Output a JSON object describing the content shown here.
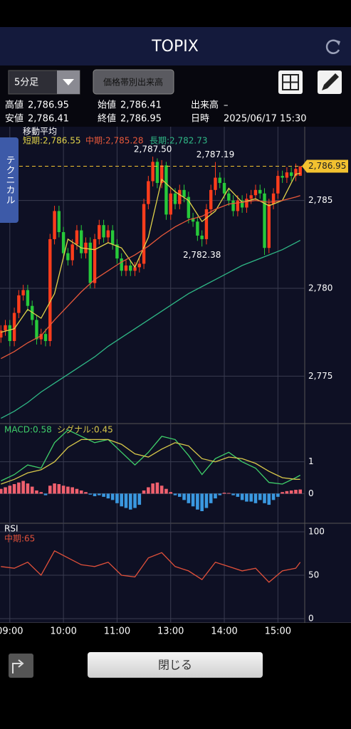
{
  "header": {
    "title": "TOPIX"
  },
  "toolbar": {
    "interval": "5分足",
    "volume_button": "価格帯別出来高"
  },
  "info": [
    [
      {
        "label": "高値",
        "value": "2,786.95"
      },
      {
        "label": "始値",
        "value": "2,786.41"
      },
      {
        "label": "出来高",
        "value": "–"
      }
    ],
    [
      {
        "label": "安値",
        "value": "2,786.41"
      },
      {
        "label": "終値",
        "value": "2,786.95"
      },
      {
        "label": "日時",
        "value": "2025/06/17 15:30"
      }
    ]
  ],
  "side_tab": "テクニカル",
  "footer": {
    "close_button": "閉じる"
  },
  "chart_data": [
    {
      "type": "candlestick",
      "title": "移動平均",
      "xlim": [
        -0.2,
        68
      ],
      "xticks": [
        {
          "value": 2,
          "label": "09:00"
        },
        {
          "value": 14,
          "label": "10:00"
        },
        {
          "value": 26,
          "label": "11:00"
        },
        {
          "value": 38,
          "label": "13:00"
        },
        {
          "value": 50,
          "label": "14:00"
        },
        {
          "value": 62,
          "label": "15:00"
        }
      ],
      "ylim": [
        2772.3,
        2789.2
      ],
      "yticks": [
        {
          "value": 2785,
          "label": "2,785"
        },
        {
          "value": 2780,
          "label": "2,780"
        },
        {
          "value": 2775,
          "label": "2,775"
        }
      ],
      "grid": true,
      "up_color": "#ff3d1c",
      "down_color": "#27c93a",
      "open": [
        2777.2,
        2777.6,
        2777.9,
        2777.0,
        2778.6,
        2779.6,
        2779.9,
        2779.0,
        2778.2,
        2777.1,
        2777.4,
        2777.0,
        2782.8,
        2784.4,
        2783.2,
        2782.0,
        2781.6,
        2782.5,
        2783.3,
        2782.0,
        2782.6,
        2780.3,
        2782.8,
        2783.6,
        2782.9,
        2783.3,
        2782.5,
        2781.7,
        2781.0,
        2781.3,
        2781.0,
        2781.2,
        2781.4,
        2784.8,
        2786.1,
        2787.2,
        2786.0,
        2787.0,
        2784.2,
        2785.4,
        2784.8,
        2785.6,
        2785.2,
        2784.0,
        2783.8,
        2783.0,
        2782.8,
        2784.5,
        2785.6,
        2786.3,
        2786.0,
        2785.4,
        2785.0,
        2784.4,
        2785.0,
        2784.6,
        2785.1,
        2785.3,
        2785.6,
        2785.4,
        2782.3,
        2784.8,
        2785.4,
        2786.4,
        2786.3,
        2786.6,
        2786.4,
        2786.41
      ],
      "high": [
        2777.9,
        2778.2,
        2778.2,
        2778.9,
        2779.9,
        2780.2,
        2780.2,
        2779.3,
        2778.5,
        2777.7,
        2777.7,
        2783.1,
        2784.7,
        2784.7,
        2783.5,
        2782.3,
        2782.8,
        2783.6,
        2783.6,
        2782.9,
        2782.9,
        2783.1,
        2783.9,
        2783.9,
        2783.6,
        2783.6,
        2782.8,
        2782.0,
        2781.6,
        2781.6,
        2781.5,
        2781.7,
        2785.1,
        2786.4,
        2787.5,
        2787.4,
        2787.3,
        2787.2,
        2785.7,
        2785.7,
        2785.9,
        2785.9,
        2785.5,
        2784.3,
        2784.1,
        2783.3,
        2784.8,
        2785.9,
        2787.19,
        2786.6,
        2786.3,
        2785.7,
        2785.3,
        2785.3,
        2785.3,
        2785.4,
        2785.6,
        2785.9,
        2785.9,
        2785.7,
        2785.1,
        2785.7,
        2786.7,
        2786.7,
        2786.9,
        2786.9,
        2787.1,
        2786.95
      ],
      "low": [
        2776.9,
        2777.3,
        2776.7,
        2776.7,
        2778.3,
        2779.3,
        2778.7,
        2777.9,
        2776.8,
        2776.8,
        2776.7,
        2776.7,
        2782.5,
        2782.9,
        2781.7,
        2781.3,
        2781.3,
        2782.2,
        2781.7,
        2781.7,
        2780.0,
        2780.0,
        2782.5,
        2782.6,
        2782.6,
        2782.2,
        2781.4,
        2780.7,
        2780.7,
        2780.7,
        2780.7,
        2780.9,
        2781.1,
        2784.5,
        2785.8,
        2785.7,
        2785.7,
        2783.9,
        2783.9,
        2784.5,
        2784.5,
        2784.9,
        2783.7,
        2783.5,
        2782.7,
        2782.38,
        2782.5,
        2784.2,
        2785.3,
        2785.7,
        2785.1,
        2784.7,
        2784.1,
        2784.1,
        2784.3,
        2784.3,
        2784.8,
        2785.0,
        2785.1,
        2781.9,
        2782.0,
        2784.5,
        2785.1,
        2786.0,
        2786.0,
        2786.1,
        2786.1,
        2786.41
      ],
      "close": [
        2777.6,
        2777.9,
        2777.0,
        2778.6,
        2779.6,
        2779.9,
        2779.0,
        2778.2,
        2777.1,
        2777.4,
        2777.0,
        2782.8,
        2784.4,
        2783.2,
        2782.0,
        2781.6,
        2782.5,
        2783.3,
        2782.0,
        2782.6,
        2780.3,
        2782.8,
        2783.6,
        2782.9,
        2783.3,
        2782.5,
        2781.7,
        2781.0,
        2781.3,
        2781.0,
        2781.2,
        2781.4,
        2784.8,
        2786.1,
        2787.2,
        2786.0,
        2787.0,
        2784.2,
        2785.4,
        2784.8,
        2785.6,
        2785.2,
        2784.0,
        2783.8,
        2783.0,
        2782.8,
        2784.5,
        2785.6,
        2786.3,
        2786.0,
        2785.4,
        2785.0,
        2784.4,
        2785.0,
        2784.6,
        2785.1,
        2785.3,
        2785.6,
        2785.4,
        2782.3,
        2784.8,
        2785.4,
        2786.4,
        2786.3,
        2786.6,
        2786.4,
        2786.8,
        2786.95
      ],
      "series": [
        {
          "name": "短期:2,786.55",
          "color": "#e0d24a",
          "x": [
            0,
            3,
            6,
            9,
            12,
            15,
            18,
            21,
            24,
            27,
            30,
            33,
            36,
            39,
            42,
            45,
            48,
            51,
            54,
            57,
            60,
            63,
            66,
            67
          ],
          "values": [
            2777.5,
            2777.7,
            2778.8,
            2778.3,
            2779.7,
            2782.8,
            2782.3,
            2782.2,
            2782.6,
            2782.3,
            2781.2,
            2782.9,
            2786.2,
            2785.5,
            2785.0,
            2783.8,
            2784.4,
            2785.7,
            2784.9,
            2785.1,
            2784.7,
            2785.0,
            2786.5,
            2786.55
          ]
        },
        {
          "name": "中期:2,785.28",
          "color": "#e8583a",
          "x": [
            0,
            3,
            6,
            9,
            12,
            15,
            18,
            21,
            24,
            27,
            30,
            33,
            36,
            39,
            42,
            45,
            48,
            51,
            54,
            57,
            60,
            63,
            66,
            67
          ],
          "values": [
            2776.0,
            2776.4,
            2776.9,
            2777.3,
            2778.2,
            2779.0,
            2779.8,
            2780.5,
            2781.0,
            2781.5,
            2781.9,
            2782.4,
            2783.0,
            2783.5,
            2783.9,
            2784.1,
            2784.5,
            2784.8,
            2784.9,
            2785.0,
            2784.9,
            2785.0,
            2785.2,
            2785.28
          ]
        },
        {
          "name": "長期:2,782.73",
          "color": "#2fb886",
          "x": [
            0,
            3,
            6,
            9,
            12,
            15,
            18,
            21,
            24,
            27,
            30,
            33,
            36,
            39,
            42,
            45,
            48,
            51,
            54,
            57,
            60,
            63,
            66,
            67
          ],
          "values": [
            2772.6,
            2773.0,
            2773.5,
            2774.1,
            2774.6,
            2775.1,
            2775.6,
            2776.1,
            2776.7,
            2777.2,
            2777.7,
            2778.2,
            2778.7,
            2779.2,
            2779.7,
            2780.1,
            2780.5,
            2780.9,
            2781.3,
            2781.6,
            2781.9,
            2782.2,
            2782.6,
            2782.73
          ]
        }
      ],
      "annotations": [
        {
          "value": 2787.5,
          "label": "2,787.50"
        },
        {
          "value": 2787.19,
          "label": "2,787.19"
        },
        {
          "value": 2782.38,
          "label": "2,782.38"
        }
      ],
      "last_price": {
        "value": 2786.95,
        "label": "2,786.95",
        "color": "#f2c230"
      }
    },
    {
      "type": "macd",
      "ylim": [
        -0.93,
        2.2
      ],
      "yticks": [
        1,
        0
      ],
      "series": [
        {
          "name": "MACD:0.58",
          "color": "#3fcf6a",
          "x": [
            0,
            3,
            6,
            9,
            12,
            15,
            18,
            21,
            24,
            27,
            30,
            33,
            36,
            39,
            42,
            45,
            48,
            51,
            54,
            57,
            60,
            63,
            66,
            67
          ],
          "values": [
            0.4,
            0.6,
            0.9,
            0.8,
            1.6,
            2.0,
            1.8,
            1.6,
            1.7,
            1.3,
            0.9,
            1.3,
            1.8,
            1.7,
            1.2,
            0.6,
            1.1,
            1.3,
            1.0,
            0.8,
            0.35,
            0.3,
            0.5,
            0.58
          ]
        },
        {
          "name": "シグナル:0.45",
          "color": "#d8c84a",
          "x": [
            0,
            3,
            6,
            9,
            12,
            15,
            18,
            21,
            24,
            27,
            30,
            33,
            36,
            39,
            42,
            45,
            48,
            51,
            54,
            57,
            60,
            63,
            66,
            67
          ],
          "values": [
            0.3,
            0.45,
            0.65,
            0.75,
            1.0,
            1.45,
            1.7,
            1.7,
            1.7,
            1.55,
            1.25,
            1.15,
            1.4,
            1.6,
            1.5,
            1.1,
            1.0,
            1.15,
            1.1,
            0.95,
            0.7,
            0.5,
            0.45,
            0.45
          ]
        }
      ],
      "histogram": {
        "positive_color": "#f0606e",
        "negative_color": "#3a98e0",
        "values": [
          0.15,
          0.2,
          0.25,
          0.3,
          0.35,
          0.4,
          0.32,
          0.22,
          0.1,
          0.05,
          -0.05,
          0.25,
          0.32,
          0.3,
          0.25,
          0.22,
          0.2,
          0.15,
          0.1,
          0.05,
          -0.03,
          -0.08,
          -0.05,
          -0.1,
          -0.15,
          -0.2,
          -0.3,
          -0.4,
          -0.45,
          -0.5,
          -0.45,
          -0.35,
          0.1,
          0.2,
          0.32,
          0.35,
          0.25,
          0.15,
          0.05,
          -0.05,
          -0.1,
          -0.2,
          -0.3,
          -0.4,
          -0.5,
          -0.55,
          -0.45,
          -0.3,
          -0.15,
          -0.05,
          0.03,
          0.02,
          -0.05,
          -0.1,
          -0.2,
          -0.25,
          -0.25,
          -0.3,
          -0.2,
          -0.3,
          -0.35,
          -0.2,
          -0.1,
          0.05,
          0.08,
          0.1,
          0.12,
          0.13
        ]
      }
    },
    {
      "type": "line",
      "title": "RSI",
      "ylim": [
        -4.9,
        109.8
      ],
      "yticks": [
        100,
        50,
        0
      ],
      "series": [
        {
          "name": "中期:65",
          "color": "#e0503a",
          "x": [
            0,
            3,
            6,
            9,
            12,
            15,
            18,
            21,
            24,
            27,
            30,
            33,
            36,
            39,
            42,
            45,
            48,
            51,
            54,
            57,
            60,
            63,
            66,
            67
          ],
          "values": [
            60,
            58,
            65,
            50,
            78,
            70,
            62,
            60,
            65,
            50,
            48,
            70,
            76,
            60,
            55,
            45,
            65,
            60,
            55,
            58,
            42,
            55,
            58,
            65
          ]
        }
      ]
    }
  ]
}
